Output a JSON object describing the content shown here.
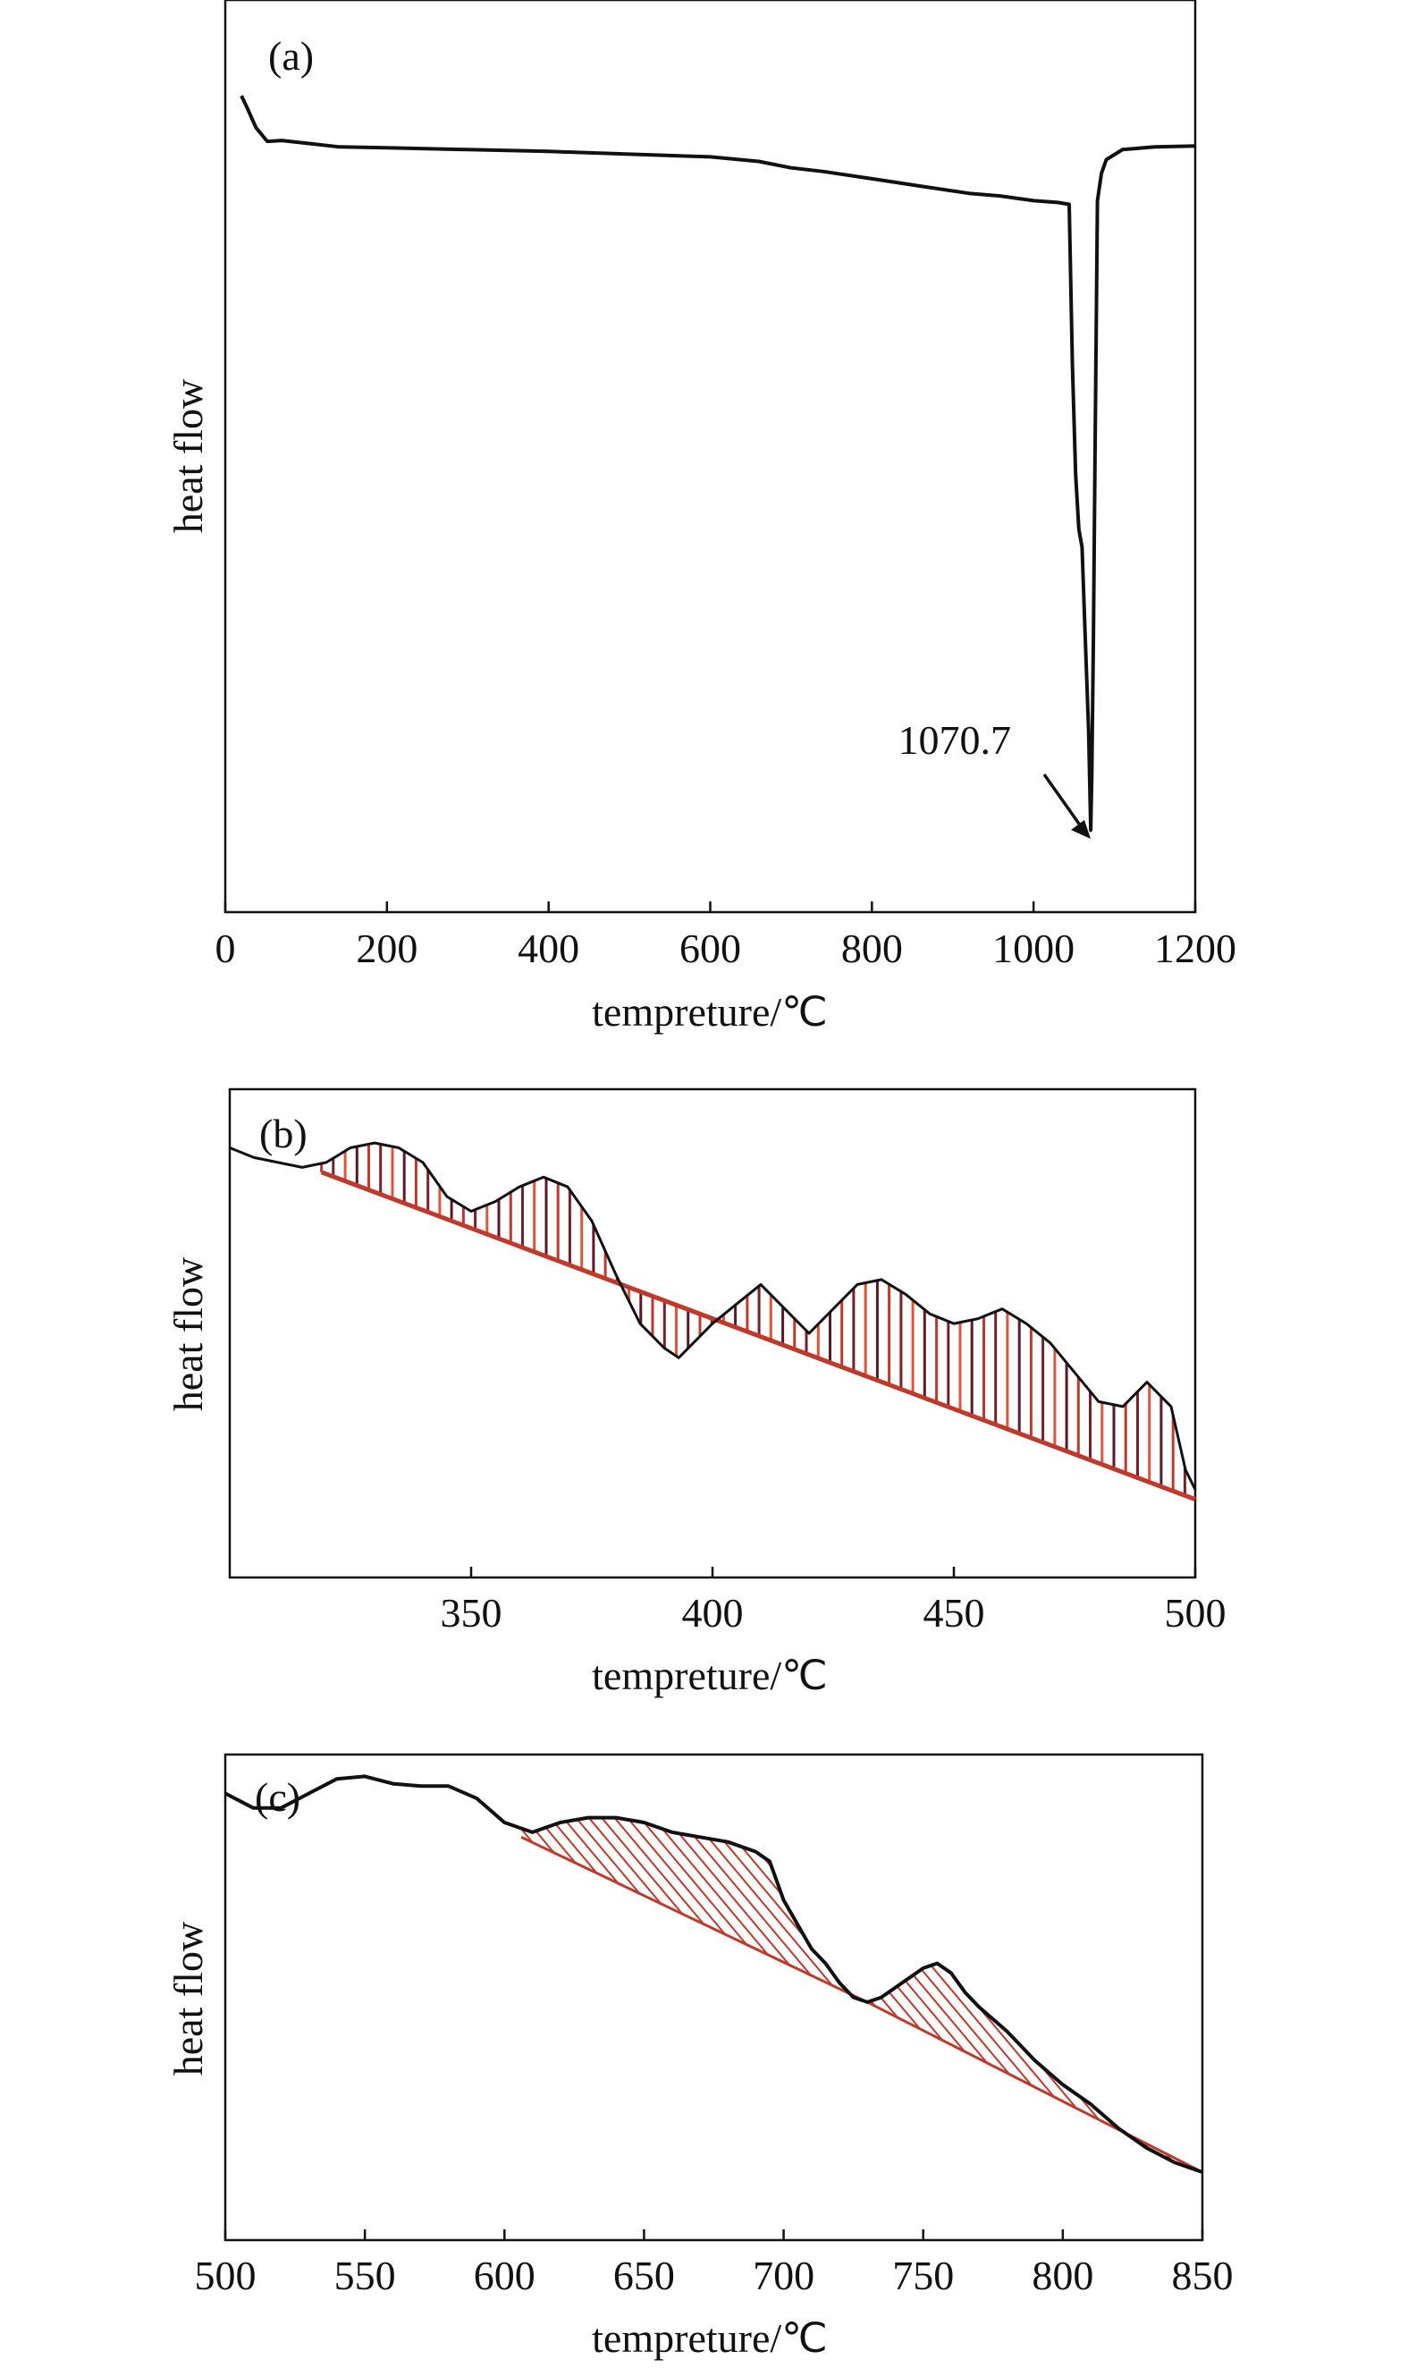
{
  "chart_data": [
    {
      "type": "line",
      "panel_label": "(a)",
      "xlabel": "tempreture/℃",
      "ylabel": "heat flow",
      "xlim": [
        0,
        1200
      ],
      "ylim": [
        0,
        100
      ],
      "y_ticks_shown": false,
      "grid": false,
      "x_ticks": [
        0,
        200,
        400,
        600,
        800,
        1000,
        1200
      ],
      "x_tick_labels": [
        "0",
        "200",
        "400",
        "600",
        "800",
        "1000",
        "1200"
      ],
      "annotation": {
        "text": "1070.7",
        "x": 1070.7,
        "y": 9
      },
      "series": [
        {
          "x": [
            20,
            28,
            38,
            52,
            70,
            100,
            140,
            200,
            300,
            400,
            500,
            600,
            660,
            700,
            740,
            800,
            860,
            920,
            960,
            1000,
            1030,
            1044,
            1048,
            1052,
            1056,
            1060,
            1064,
            1068,
            1070.7,
            1072,
            1074,
            1076,
            1079,
            1084,
            1090,
            1110,
            1150,
            1200
          ],
          "y": [
            89.5,
            88,
            86,
            84.5,
            84.6,
            84.3,
            83.9,
            83.8,
            83.6,
            83.4,
            83.1,
            82.8,
            82.3,
            81.6,
            81.2,
            80.4,
            79.6,
            78.8,
            78.5,
            78,
            77.8,
            77.6,
            60,
            48,
            42,
            40,
            30,
            20,
            9,
            15,
            30,
            50,
            78,
            81,
            82.5,
            83.6,
            83.9,
            84
          ]
        }
      ]
    },
    {
      "type": "line",
      "panel_label": "(b)",
      "xlabel": "tempreture/℃",
      "ylabel": "heat flow",
      "xlim": [
        300,
        500
      ],
      "ylim": [
        0,
        100
      ],
      "y_ticks_shown": false,
      "grid": false,
      "x_ticks": [
        350,
        400,
        450,
        500
      ],
      "x_tick_labels": [
        "350",
        "400",
        "450",
        "500"
      ],
      "shaded_regions": [
        {
          "style": "vertical-hatch",
          "x_start": 319,
          "x_end": 500,
          "baseline": [
            [
              319,
              83
            ],
            [
              500,
              16
            ]
          ]
        }
      ],
      "series": [
        {
          "x": [
            300,
            305,
            310,
            315,
            320,
            325,
            330,
            335,
            340,
            345,
            350,
            355,
            360,
            365,
            370,
            375,
            380,
            385,
            390,
            393,
            396,
            400,
            405,
            410,
            415,
            420,
            425,
            430,
            435,
            440,
            445,
            450,
            455,
            460,
            465,
            470,
            475,
            480,
            485,
            490,
            495,
            498,
            500
          ],
          "y": [
            88,
            86,
            85,
            84,
            85,
            88,
            89,
            88,
            85,
            78,
            75,
            77,
            80,
            82,
            80,
            73,
            62,
            52,
            47,
            45,
            48,
            52,
            56,
            60,
            55,
            50,
            55,
            60,
            61,
            58,
            54,
            52,
            53,
            55,
            52,
            48,
            42,
            36,
            35,
            40,
            35,
            22,
            18
          ]
        }
      ]
    },
    {
      "type": "line",
      "panel_label": "(c)",
      "xlabel": "tempreture/℃",
      "ylabel": "heat flow",
      "xlim": [
        500,
        850
      ],
      "ylim": [
        0,
        100
      ],
      "y_ticks_shown": false,
      "grid": false,
      "x_ticks": [
        500,
        550,
        600,
        650,
        700,
        750,
        800,
        850
      ],
      "x_tick_labels": [
        "500",
        "550",
        "600",
        "650",
        "700",
        "750",
        "800",
        "850"
      ],
      "shaded_regions": [
        {
          "style": "diagonal-hatch",
          "x_start": 606,
          "x_end": 730,
          "baseline": [
            [
              606,
              83
            ],
            [
              730,
              49
            ]
          ]
        },
        {
          "style": "diagonal-hatch",
          "x_start": 730,
          "x_end": 850,
          "baseline": [
            [
              730,
              49
            ],
            [
              850,
              14
            ]
          ]
        }
      ],
      "series": [
        {
          "x": [
            500,
            510,
            520,
            530,
            540,
            550,
            560,
            570,
            580,
            590,
            600,
            610,
            620,
            630,
            640,
            650,
            660,
            670,
            680,
            690,
            695,
            700,
            705,
            710,
            715,
            720,
            725,
            730,
            735,
            740,
            745,
            750,
            755,
            760,
            765,
            770,
            780,
            790,
            800,
            810,
            820,
            830,
            840,
            850
          ],
          "y": [
            92,
            89,
            89,
            92,
            95,
            95.5,
            94,
            93.5,
            93.5,
            91,
            86,
            84,
            86,
            87,
            87,
            86,
            84,
            83,
            82,
            80,
            78,
            70,
            65,
            60,
            57,
            53,
            50,
            49,
            50,
            52,
            54,
            56,
            57,
            55,
            51,
            48,
            43,
            37,
            32,
            28,
            23,
            19,
            16,
            14
          ]
        }
      ]
    }
  ]
}
